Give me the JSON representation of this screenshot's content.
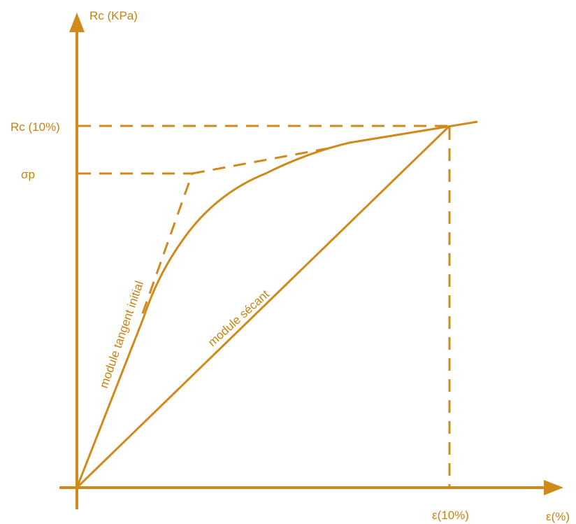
{
  "colors": {
    "stroke": "#D08A1C",
    "text": "#C98210",
    "background": "#FFFFFF"
  },
  "labels": {
    "y_axis": "Rc (KPa)",
    "x_axis": "ε(%)",
    "rc10": "Rc (10%)",
    "sigma_p": "σp",
    "eps10": "ε(10%)",
    "tangent": "module tangent initial",
    "secant": "module sécant"
  }
}
